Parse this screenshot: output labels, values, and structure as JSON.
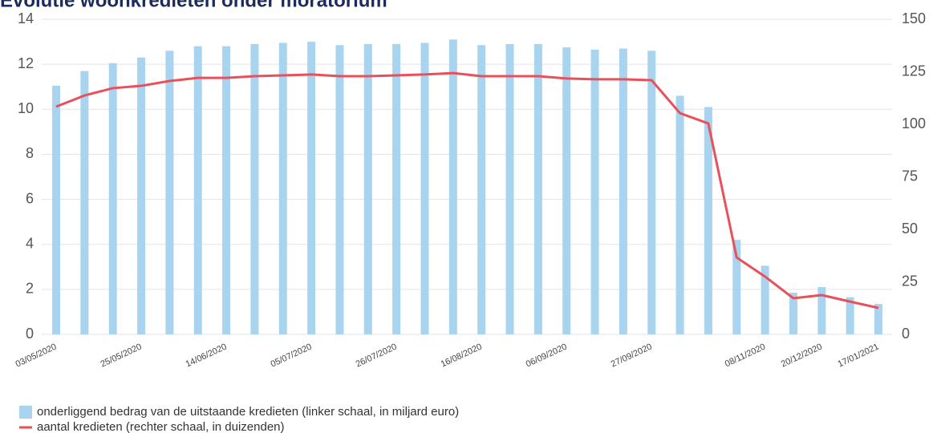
{
  "chart_data": {
    "type": "bar-line",
    "title": "Evolutie woonkredieten onder moratorium",
    "categories": [
      "03/05/2020",
      null,
      null,
      "25/05/2020",
      null,
      null,
      "14/06/2020",
      null,
      null,
      "05/07/2020",
      null,
      null,
      "26/07/2020",
      null,
      null,
      "16/08/2020",
      null,
      null,
      "06/09/2020",
      null,
      null,
      "27/09/2020",
      null,
      null,
      null,
      "08/11/2020",
      null,
      "20/12/2020",
      null,
      "17/01/2021"
    ],
    "series": [
      {
        "name": "onderliggend bedrag van de uitstaande kredieten (linker schaal, in miljard euro)",
        "type": "bar",
        "color": "#a8d4f0",
        "values": [
          11.05,
          11.7,
          12.05,
          12.3,
          12.6,
          12.8,
          12.8,
          12.9,
          12.95,
          13.0,
          12.85,
          12.9,
          12.9,
          12.95,
          13.1,
          12.85,
          12.9,
          12.9,
          12.75,
          12.65,
          12.7,
          12.6,
          10.6,
          10.1,
          4.2,
          3.05,
          1.85,
          2.1,
          1.65,
          1.35
        ]
      },
      {
        "name": "aantal kredieten (rechter schaal, in duizenden)",
        "type": "line",
        "axis": "y2",
        "color": "#e8505b",
        "values": [
          108.4,
          113.7,
          117.2,
          118.3,
          120.6,
          122.1,
          122.1,
          122.9,
          123.3,
          123.7,
          122.9,
          122.9,
          123.3,
          123.7,
          124.4,
          122.9,
          122.9,
          122.9,
          121.8,
          121.4,
          121.4,
          121.0,
          105.3,
          100.4,
          36.6,
          27.5,
          17.2,
          18.7,
          15.6,
          12.6
        ]
      }
    ],
    "ylim": [
      0,
      14
    ],
    "yticks": [
      0,
      2,
      4,
      6,
      8,
      10,
      12,
      14
    ],
    "y2lim": [
      0,
      150
    ],
    "y2ticks": [
      0,
      25,
      50,
      75,
      100,
      125,
      150
    ],
    "grid": true,
    "legend": "bottom-left"
  }
}
